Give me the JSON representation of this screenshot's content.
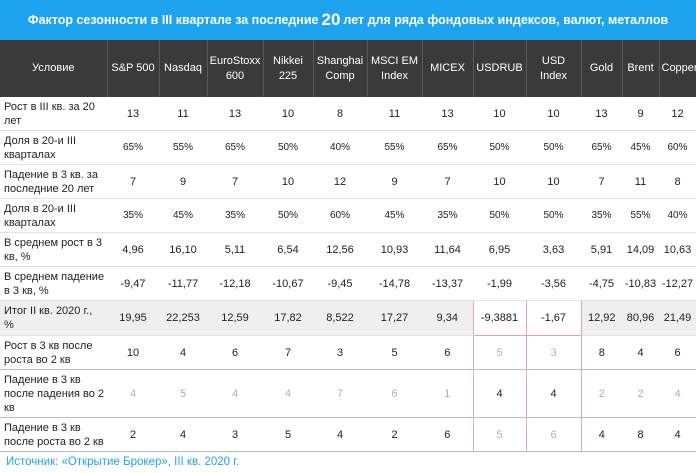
{
  "title": {
    "pre": "Фактор сезонности в III квартале за последние",
    "big": "20",
    "post": "лет для ряда фондовых индексов, валют, металлов"
  },
  "header": {
    "condition": "Условие",
    "columns": [
      "S&P 500",
      "Nasdaq",
      "EuroStoxx 600",
      "Nikkei 225",
      "Shanghai Comp",
      "MSCI EM Index",
      "MICEX",
      "USDRUB",
      "USD Index",
      "Gold",
      "Brent",
      "Copper"
    ]
  },
  "rows": [
    {
      "label": "Рост в III кв. за 20 лет",
      "values": [
        "13",
        "11",
        "13",
        "10",
        "8",
        "11",
        "13",
        "10",
        "10",
        "13",
        "9",
        "12"
      ]
    },
    {
      "label": "Доля в 20-и III кварталах",
      "values": [
        "65%",
        "55%",
        "65%",
        "50%",
        "40%",
        "55%",
        "65%",
        "50%",
        "50%",
        "65%",
        "45%",
        "60%"
      ]
    },
    {
      "label": "Падение в 3 кв. за последние 20 лет",
      "values": [
        "7",
        "9",
        "7",
        "10",
        "12",
        "9",
        "7",
        "10",
        "10",
        "7",
        "11",
        "8"
      ]
    },
    {
      "label": "Доля в 20-и III кварталах",
      "values": [
        "35%",
        "45%",
        "35%",
        "50%",
        "60%",
        "45%",
        "35%",
        "50%",
        "50%",
        "35%",
        "55%",
        "40%"
      ]
    },
    {
      "label": "В среднем рост в 3 кв, %",
      "values": [
        "4,96",
        "16,10",
        "5,11",
        "6,54",
        "12,56",
        "10,93",
        "11,64",
        "6,95",
        "3,63",
        "5,91",
        "14,09",
        "10,63"
      ]
    },
    {
      "label": "В среднем падение в 3 кв, %",
      "values": [
        "-9,47",
        "-11,77",
        "-12,18",
        "-10,67",
        "-9,45",
        "-14,78",
        "-13,37",
        "-1,99",
        "-3,56",
        "-4,75",
        "-10,83",
        "-12,27"
      ]
    },
    {
      "label": "Итог II кв. 2020 г., %",
      "values": [
        "19,95",
        "22,253",
        "12,59",
        "17,82",
        "8,522",
        "17,27",
        "9,34",
        "-9,3881",
        "-1,67",
        "12,92",
        "80,96",
        "21,49"
      ]
    },
    {
      "label": "Рост в 3 кв после роста во 2 кв",
      "values": [
        "10",
        "4",
        "6",
        "7",
        "3",
        "5",
        "6",
        "5",
        "3",
        "8",
        "4",
        "6"
      ]
    },
    {
      "label": "Падение в 3 кв после падения во 2 кв",
      "values": [
        "4",
        "5",
        "4",
        "4",
        "7",
        "6",
        "1",
        "4",
        "4",
        "2",
        "2",
        "4"
      ]
    },
    {
      "label": "Падение в 3 кв после роста во 2 кв",
      "values": [
        "2",
        "4",
        "3",
        "5",
        "4",
        "2",
        "6",
        "5",
        "6",
        "4",
        "8",
        "4"
      ]
    }
  ],
  "source": "Источник: «Открытие Брокер», III кв. 2020 г.",
  "colors": {
    "title_bg": "#1ea3ee",
    "header_bg": "#3a3a3a",
    "highlight_row": "#efefef"
  }
}
